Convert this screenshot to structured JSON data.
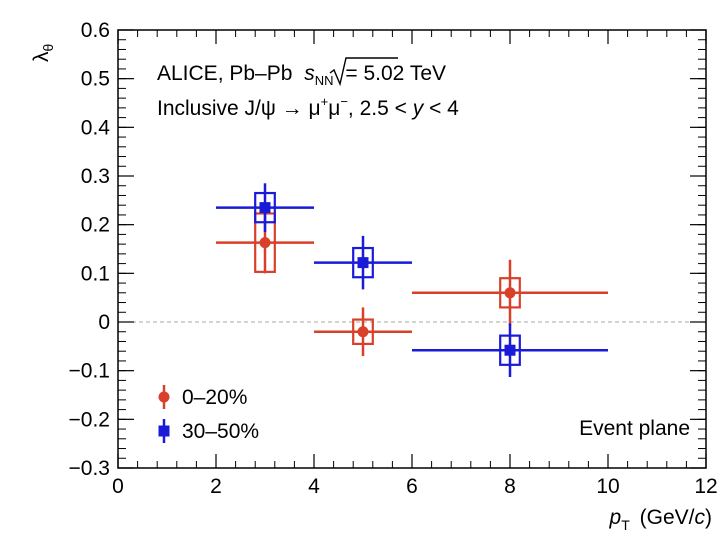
{
  "chart_data": {
    "type": "scatter",
    "title": "",
    "xlabel": "p_T (GeV/c)",
    "xlabel_main": "p",
    "xlabel_sub": "T",
    "xlabel_unit_pre": "(GeV/",
    "xlabel_unit_var": "c",
    "xlabel_unit_post": ")",
    "ylabel": "λ_θ",
    "ylabel_main": "λ",
    "ylabel_sub": "θ",
    "xlim": [
      0,
      12
    ],
    "ylim": [
      -0.3,
      0.6
    ],
    "xticks": [
      0,
      2,
      4,
      6,
      8,
      10,
      12
    ],
    "xtick_labels": [
      "0",
      "2",
      "4",
      "6",
      "8",
      "10",
      "12"
    ],
    "yticks": [
      -0.3,
      -0.2,
      -0.1,
      0,
      0.1,
      0.2,
      0.3,
      0.4,
      0.5,
      0.6
    ],
    "ytick_labels": [
      "−0.3",
      "−0.2",
      "−0.1",
      "0",
      "0.1",
      "0.2",
      "0.3",
      "0.4",
      "0.5",
      "0.6"
    ],
    "reference_line_y": 0,
    "annotations": {
      "line1_prefix": "ALICE, Pb–Pb",
      "line1_sqrt_var": "s",
      "line1_sqrt_sub": "NN",
      "line1_suffix": "= 5.02 TeV",
      "line2_prefix": "Inclusive J/ψ → μ",
      "line2_mu_plus": "+",
      "line2_mu_minus_base": "μ",
      "line2_mu_minus": "−",
      "line2_mid": ", 2.5 <",
      "line2_var": "y",
      "line2_suffix": "< 4",
      "corner": "Event plane"
    },
    "series": [
      {
        "name": "0–20%",
        "color": "#d9402a",
        "marker": "circle",
        "points": [
          {
            "x": 3,
            "y": 0.163,
            "x_low": 2,
            "x_high": 4,
            "stat": 0.063,
            "sys": 0.06
          },
          {
            "x": 5,
            "y": -0.02,
            "x_low": 4,
            "x_high": 6,
            "stat": 0.05,
            "sys": 0.025
          },
          {
            "x": 8,
            "y": 0.06,
            "x_low": 6,
            "x_high": 10,
            "stat": 0.068,
            "sys": 0.03
          }
        ]
      },
      {
        "name": "30–50%",
        "color": "#1a1ad9",
        "marker": "square",
        "points": [
          {
            "x": 3,
            "y": 0.235,
            "x_low": 2,
            "x_high": 4,
            "stat": 0.05,
            "sys": 0.03
          },
          {
            "x": 5,
            "y": 0.122,
            "x_low": 4,
            "x_high": 6,
            "stat": 0.055,
            "sys": 0.03
          },
          {
            "x": 8,
            "y": -0.058,
            "x_low": 6,
            "x_high": 10,
            "stat": 0.055,
            "sys": 0.03
          }
        ]
      }
    ],
    "legend": {
      "position": "bottom-left",
      "entries": [
        "0–20%",
        "30–50%"
      ]
    }
  }
}
